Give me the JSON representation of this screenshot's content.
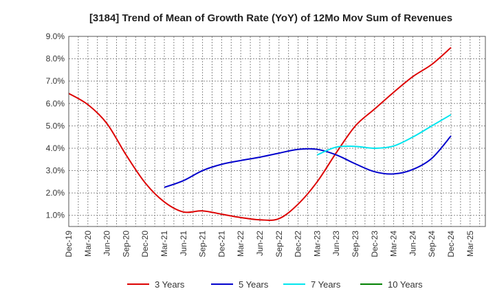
{
  "chart_data": {
    "type": "line",
    "title": "[3184]  Trend of Mean of Growth Rate (YoY) of 12Mo Mov Sum of Revenues",
    "xlabel": "",
    "ylabel": "",
    "ylim": [
      0.5,
      9.0
    ],
    "y_ticks": [
      1.0,
      2.0,
      3.0,
      4.0,
      5.0,
      6.0,
      7.0,
      8.0,
      9.0
    ],
    "y_tick_labels": [
      "1.0%",
      "2.0%",
      "3.0%",
      "4.0%",
      "5.0%",
      "6.0%",
      "7.0%",
      "8.0%",
      "9.0%"
    ],
    "categories": [
      "Dec-19",
      "Mar-20",
      "Jun-20",
      "Sep-20",
      "Dec-20",
      "Mar-21",
      "Jun-21",
      "Sep-21",
      "Dec-21",
      "Mar-22",
      "Jun-22",
      "Sep-22",
      "Dec-22",
      "Mar-23",
      "Jun-23",
      "Sep-23",
      "Dec-23",
      "Mar-24",
      "Jun-24",
      "Sep-24",
      "Dec-24",
      "Mar-25"
    ],
    "grid": true,
    "legend_position": "bottom",
    "series": [
      {
        "name": "3 Years",
        "color": "#dd0000",
        "x": [
          0,
          1,
          2,
          3,
          4,
          5,
          6,
          7,
          8,
          9,
          10,
          11,
          12,
          13,
          14,
          15,
          16,
          17,
          18,
          19,
          20
        ],
        "values": [
          6.45,
          5.95,
          5.1,
          3.7,
          2.45,
          1.6,
          1.15,
          1.2,
          1.05,
          0.9,
          0.8,
          0.85,
          1.5,
          2.5,
          3.8,
          5.0,
          5.75,
          6.5,
          7.2,
          7.75,
          8.5
        ]
      },
      {
        "name": "5 Years",
        "color": "#0000cc",
        "x": [
          5,
          6,
          7,
          8,
          9,
          10,
          11,
          12,
          13,
          14,
          15,
          16,
          17,
          18,
          19,
          20
        ],
        "values": [
          2.25,
          2.55,
          3.0,
          3.28,
          3.45,
          3.6,
          3.78,
          3.95,
          3.95,
          3.7,
          3.3,
          2.95,
          2.85,
          3.05,
          3.55,
          4.55
        ]
      },
      {
        "name": "7 Years",
        "color": "#00e5ee",
        "x": [
          13,
          14,
          15,
          16,
          17,
          18,
          19,
          20
        ],
        "values": [
          3.7,
          4.05,
          4.08,
          4.0,
          4.1,
          4.5,
          5.0,
          5.5
        ]
      },
      {
        "name": "10 Years",
        "color": "#008000",
        "x": [],
        "values": []
      }
    ]
  }
}
